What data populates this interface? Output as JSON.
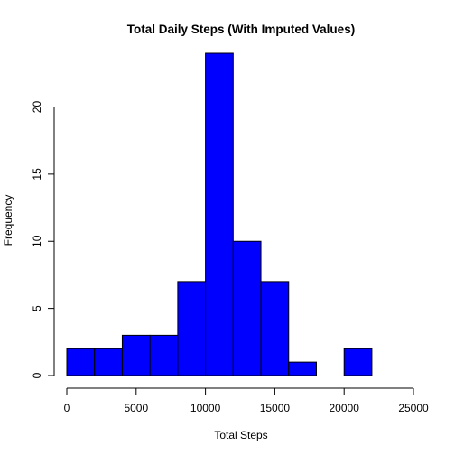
{
  "chart_data": {
    "type": "bar",
    "title": "Total Daily Steps (With Imputed Values)",
    "xlabel": "Total Steps",
    "ylabel": "Frequency",
    "bin_edges": [
      0,
      2000,
      4000,
      6000,
      8000,
      10000,
      12000,
      14000,
      16000,
      18000,
      20000,
      22000
    ],
    "values": [
      2,
      2,
      3,
      3,
      7,
      24,
      10,
      7,
      1,
      0,
      2
    ],
    "xlim": [
      0,
      25000
    ],
    "ylim": [
      0,
      24
    ],
    "xticks": [
      0,
      5000,
      10000,
      15000,
      20000,
      25000
    ],
    "xtick_labels": [
      "0",
      "5000",
      "10000",
      "15000",
      "20000",
      "25000"
    ],
    "yticks": [
      0,
      5,
      10,
      15,
      20
    ],
    "ytick_labels": [
      "0",
      "5",
      "10",
      "15",
      "20"
    ],
    "grid": false,
    "bar_color": "#0000ff",
    "bar_edge_color": "#000000"
  }
}
